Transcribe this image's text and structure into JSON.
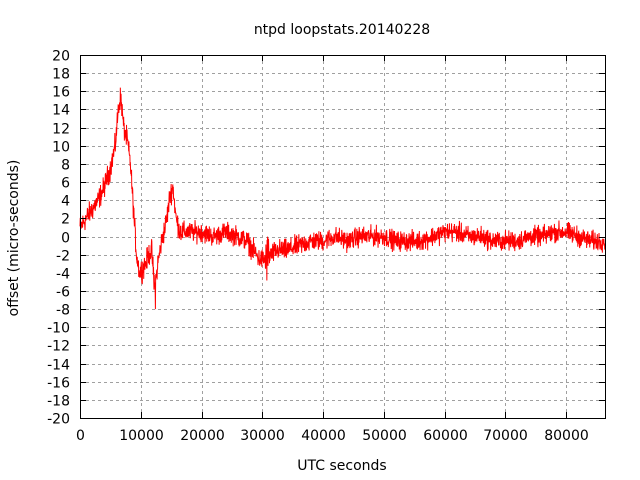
{
  "chart_data": {
    "type": "line",
    "title": "ntpd loopstats.20140228",
    "xlabel": "UTC seconds",
    "ylabel": "offset (micro-seconds)",
    "xlim": [
      0,
      86400
    ],
    "ylim": [
      -20,
      20
    ],
    "x_ticks": [
      0,
      10000,
      20000,
      30000,
      40000,
      50000,
      60000,
      70000,
      80000
    ],
    "y_ticks": [
      -20,
      -18,
      -16,
      -14,
      -12,
      -10,
      -8,
      -6,
      -4,
      -2,
      0,
      2,
      4,
      6,
      8,
      10,
      12,
      14,
      16,
      18,
      20
    ],
    "grid": true,
    "line_color": "#ff0000",
    "series": [
      {
        "x": [
          0,
          1000,
          2000,
          3000,
          4000,
          5000,
          5800,
          6300,
          6700,
          7200,
          7800,
          8300,
          8800,
          9300,
          9800,
          10300,
          10800,
          11300,
          11800,
          12300,
          12800,
          13300,
          13800,
          14300,
          14800,
          15300,
          15800,
          16500,
          17500,
          18500,
          20000,
          22000,
          24000,
          26000,
          27500,
          28500,
          29500,
          30500,
          31500,
          32500,
          34000,
          36000,
          38000,
          40000,
          42000,
          44000,
          46000,
          48000,
          50000,
          52000,
          54000,
          56000,
          58000,
          60000,
          62000,
          64000,
          66000,
          68000,
          70000,
          72000,
          74000,
          76000,
          78000,
          80000,
          82000,
          84000,
          86400
        ],
        "y": [
          1.0,
          2.0,
          3.0,
          4.0,
          5.5,
          7.5,
          10.0,
          14.0,
          15.5,
          12.0,
          10.5,
          8.0,
          3.0,
          -2.0,
          -4.0,
          -3.5,
          -3.0,
          -2.0,
          -1.5,
          -6.0,
          -3.0,
          -1.0,
          0.5,
          2.0,
          4.5,
          5.5,
          2.0,
          0.5,
          0.5,
          0.5,
          0.5,
          0.0,
          0.5,
          0.0,
          -0.5,
          -1.5,
          -2.5,
          -2.5,
          -2.0,
          -1.5,
          -1.5,
          -1.0,
          -0.5,
          -0.5,
          0.0,
          -0.5,
          0.0,
          0.0,
          0.0,
          -0.5,
          -0.5,
          -0.5,
          0.0,
          0.5,
          0.5,
          0.0,
          0.0,
          -0.5,
          -0.5,
          -0.5,
          0.0,
          0.0,
          0.5,
          0.5,
          0.0,
          -0.5,
          -0.5
        ]
      }
    ]
  }
}
